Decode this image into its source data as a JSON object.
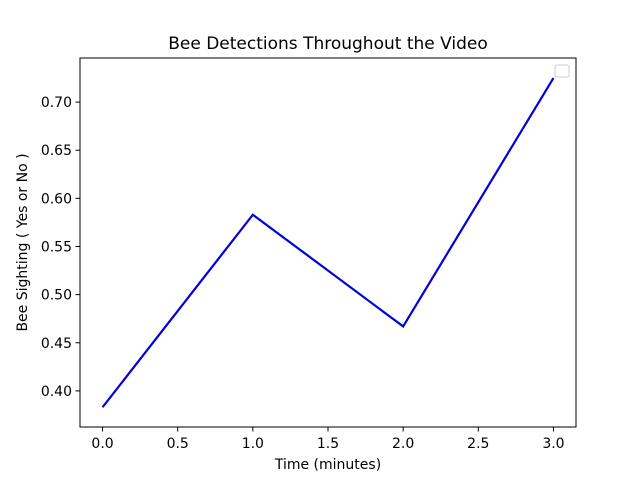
{
  "chart_data": {
    "type": "line",
    "title": "Bee Detections Throughout the Video",
    "xlabel": "Time (minutes)",
    "ylabel": "Bee Sighting ( Yes or No )",
    "x": [
      0,
      1,
      2,
      3
    ],
    "series": [
      {
        "values": [
          0.383,
          0.583,
          0.467,
          0.725
        ],
        "color": "#0000dd"
      }
    ],
    "xlim": [
      -0.15,
      3.15
    ],
    "ylim": [
      0.3625,
      0.7458
    ],
    "xticks": [
      "0.0",
      "0.5",
      "1.0",
      "1.5",
      "2.0",
      "2.5",
      "3.0"
    ],
    "yticks": [
      "0.40",
      "0.45",
      "0.50",
      "0.55",
      "0.60",
      "0.65",
      "0.70"
    ],
    "grid": false,
    "legend": {
      "placement": "upper right",
      "entries": []
    }
  }
}
